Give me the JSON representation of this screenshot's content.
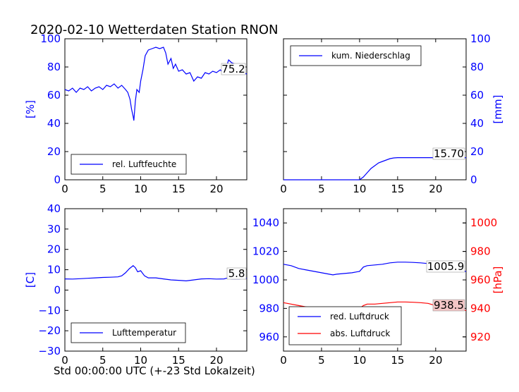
{
  "title": "2020-02-10 Wetterdaten Station RNON",
  "colors": {
    "blue": "#0000ff",
    "red": "#ff0000",
    "black": "#000000",
    "highlight_red": "#f4c6c6"
  },
  "chart_data": [
    {
      "id": "humidity",
      "type": "line",
      "title": "2020-02-10 Wetterdaten Station RNON",
      "ylabel": "[%]",
      "ylabel_color": "#0000ff",
      "xlim": [
        0,
        24
      ],
      "ylim": [
        0,
        100
      ],
      "xticks": [
        "0",
        "5",
        "10",
        "15",
        "20"
      ],
      "yticks": [
        "0",
        "20",
        "40",
        "60",
        "80",
        "100"
      ],
      "ytick_color": "#0000ff",
      "grid": false,
      "legend": "lower-left",
      "annotation": "75.2",
      "series": [
        {
          "name": "rel. Luftfeuchte",
          "color": "#0000ff",
          "x": [
            0,
            0.5,
            1,
            1.5,
            2,
            2.5,
            3,
            3.5,
            4,
            4.5,
            5,
            5.5,
            6,
            6.5,
            7,
            7.5,
            8,
            8.3,
            8.6,
            8.8,
            9,
            9.1,
            9.3,
            9.5,
            9.8,
            10,
            10.3,
            10.6,
            11,
            11.5,
            12,
            12.5,
            13,
            13.3,
            13.6,
            14,
            14.3,
            14.6,
            15,
            15.5,
            16,
            16.5,
            17,
            17.5,
            18,
            18.5,
            19,
            19.5,
            20,
            20.5,
            21,
            21.3,
            21.6,
            22,
            22.5,
            23,
            23.5,
            24
          ],
          "y": [
            64,
            63,
            65,
            62,
            65,
            64,
            66,
            63,
            65,
            66,
            64,
            67,
            66,
            68,
            65,
            67,
            64,
            62,
            57,
            50,
            45,
            42,
            56,
            64,
            62,
            70,
            78,
            88,
            92,
            93,
            94,
            93,
            94,
            90,
            82,
            86,
            79,
            82,
            77,
            78,
            75,
            76,
            70,
            73,
            72,
            76,
            75,
            77,
            76,
            78,
            75,
            80,
            85,
            83,
            82,
            80,
            76,
            75
          ]
        }
      ]
    },
    {
      "id": "precipitation",
      "type": "line",
      "ylabel": "[mm]",
      "ylabel_color": "#0000ff",
      "yaxis_side": "right",
      "xlim": [
        0,
        24
      ],
      "ylim": [
        0,
        100
      ],
      "xticks": [
        "0",
        "5",
        "10",
        "15",
        "20"
      ],
      "yticks": [
        "0",
        "20",
        "40",
        "60",
        "80",
        "100"
      ],
      "ytick_color": "#0000ff",
      "grid": false,
      "legend": "upper-left",
      "annotation": "15.70",
      "series": [
        {
          "name": "kum. Niederschlag",
          "color": "#0000ff",
          "x": [
            0,
            10,
            10.5,
            11,
            11.5,
            12,
            12.5,
            13,
            13.5,
            14,
            14.5,
            15,
            16,
            17,
            18,
            19,
            20,
            21,
            22,
            23,
            24
          ],
          "y": [
            0,
            0,
            2,
            5,
            8,
            10,
            12,
            13,
            14,
            15,
            15.5,
            15.7,
            15.7,
            15.7,
            15.7,
            15.7,
            15.7,
            15.7,
            15.7,
            15.7,
            15.7
          ]
        }
      ]
    },
    {
      "id": "temperature",
      "type": "line",
      "xlabel": "Std 00:00:00 UTC (+-23 Std Lokalzeit)",
      "ylabel": "[C]",
      "ylabel_color": "#0000ff",
      "xlim": [
        0,
        24
      ],
      "ylim": [
        -30,
        40
      ],
      "xticks": [
        "0",
        "5",
        "10",
        "15",
        "20"
      ],
      "yticks": [
        "−30",
        "−20",
        "−10",
        "0",
        "10",
        "20",
        "30",
        "40"
      ],
      "ytick_color": "#0000ff",
      "grid": false,
      "legend": "lower-left",
      "annotation": "5.8",
      "series": [
        {
          "name": "Lufttemperatur",
          "color": "#0000ff",
          "x": [
            0,
            1,
            2,
            3,
            4,
            5,
            6,
            7,
            7.5,
            8,
            8.5,
            9,
            9.3,
            9.6,
            10,
            10.5,
            11,
            12,
            13,
            14,
            15,
            16,
            17,
            18,
            19,
            20,
            21,
            21.5,
            22,
            23,
            24
          ],
          "y": [
            5.5,
            5.4,
            5.6,
            5.8,
            6,
            6.2,
            6.3,
            6.5,
            7,
            8.5,
            10.5,
            12,
            11,
            9,
            9.5,
            7,
            6,
            6,
            5.5,
            5,
            4.8,
            4.5,
            5,
            5.5,
            5.6,
            5.4,
            5.5,
            6,
            5.5,
            5.5,
            5.8
          ]
        }
      ]
    },
    {
      "id": "pressure",
      "type": "line",
      "ylabel": "[hPa]",
      "ylabel_color": "#ff0000",
      "xlim": [
        0,
        24
      ],
      "ylim": [
        950,
        1050
      ],
      "ylim_right": [
        910,
        1010
      ],
      "xticks": [
        "0",
        "5",
        "10",
        "15",
        "20"
      ],
      "yticks": [
        "960",
        "980",
        "1000",
        "1020",
        "1040"
      ],
      "ytick_color": "#0000ff",
      "yticks_right": [
        "920",
        "940",
        "960",
        "980",
        "1000"
      ],
      "ytick_right_color": "#ff0000",
      "grid": false,
      "legend": "lower-left",
      "annotations": [
        "1005.9",
        "938.5"
      ],
      "series": [
        {
          "name": "red. Luftdruck",
          "color": "#0000ff",
          "axis": "left",
          "x": [
            0,
            1,
            2,
            3,
            4,
            5,
            6,
            6.5,
            7,
            8,
            9,
            10,
            10.5,
            11,
            12,
            13,
            14,
            15,
            16,
            17,
            18,
            19,
            20,
            21,
            22,
            23,
            24
          ],
          "y": [
            1011,
            1010,
            1008,
            1007,
            1006,
            1005,
            1004,
            1003.5,
            1004,
            1004.5,
            1005,
            1006,
            1009,
            1010,
            1010.5,
            1011,
            1012,
            1012.5,
            1012.5,
            1012.3,
            1012,
            1011.5,
            1010,
            1009,
            1008,
            1007,
            1005.9
          ]
        },
        {
          "name": "abs. Luftdruck",
          "color": "#ff0000",
          "axis": "right",
          "x": [
            0,
            1,
            2,
            3,
            4,
            5,
            6,
            6.5,
            7,
            8,
            9,
            10,
            10.5,
            11,
            12,
            13,
            14,
            15,
            16,
            17,
            18,
            19,
            20,
            21,
            22,
            23,
            24
          ],
          "y": [
            944,
            943,
            942,
            941,
            940,
            939,
            938,
            937.5,
            938,
            938.5,
            939,
            940,
            942,
            943,
            943,
            943.5,
            944,
            944.5,
            944.5,
            944.3,
            944,
            943.5,
            942,
            941,
            940,
            939.2,
            938.5
          ]
        }
      ]
    }
  ]
}
